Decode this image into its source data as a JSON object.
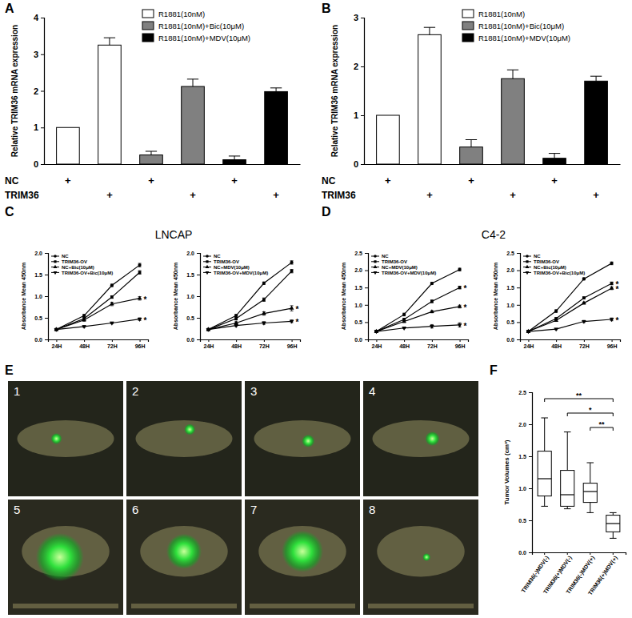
{
  "chart_data": [
    {
      "type": "bar",
      "panel": "A",
      "ylabel": "Relative TRIM36 mRNA expression",
      "categories": [
        null,
        null,
        null,
        null,
        null,
        null
      ],
      "series": [
        {
          "name": "R1881(10nM)",
          "color": "#ffffff",
          "values": [
            1.0,
            3.25,
            null,
            null,
            null,
            null
          ],
          "errors": [
            null,
            0.2,
            null,
            null,
            null,
            null
          ]
        },
        {
          "name": "R1881(10nM)+Bic(10μM)",
          "color": "#808080",
          "values": [
            null,
            null,
            0.25,
            2.12,
            null,
            null
          ],
          "errors": [
            null,
            null,
            0.1,
            0.2,
            null,
            null
          ]
        },
        {
          "name": "R1881(10nM)+MDV(10μM)",
          "color": "#000000",
          "values": [
            null,
            null,
            null,
            null,
            0.12,
            1.98
          ],
          "errors": [
            null,
            null,
            null,
            null,
            0.1,
            0.1
          ]
        }
      ],
      "ylim": [
        0,
        4
      ],
      "yticks": [
        0,
        1,
        2,
        3,
        4
      ],
      "legend": "top",
      "tick_labels": "y",
      "x_rows": [
        {
          "label": "NC",
          "marks": [
            "+",
            null,
            "+",
            null,
            "+",
            null
          ]
        },
        {
          "label": "TRIM36",
          "marks": [
            null,
            "+",
            null,
            "+",
            null,
            "+"
          ]
        }
      ]
    },
    {
      "type": "bar",
      "panel": "B",
      "ylabel": "Relative TRIM36 mRNA expression",
      "categories": [
        null,
        null,
        null,
        null,
        null,
        null
      ],
      "series": [
        {
          "name": "R1881(10nM)",
          "color": "#ffffff",
          "values": [
            1.0,
            2.65,
            null,
            null,
            null,
            null
          ],
          "errors": [
            null,
            0.15,
            null,
            null,
            null,
            null
          ]
        },
        {
          "name": "R1881(10nM)+Bic(10μM)",
          "color": "#808080",
          "values": [
            null,
            null,
            0.35,
            1.75,
            null,
            null
          ],
          "errors": [
            null,
            null,
            0.15,
            0.18,
            null,
            null
          ]
        },
        {
          "name": "R1881(10nM)+MDV(10μM)",
          "color": "#000000",
          "values": [
            null,
            null,
            null,
            null,
            0.12,
            1.7
          ],
          "errors": [
            null,
            null,
            null,
            null,
            0.1,
            0.1
          ]
        }
      ],
      "ylim": [
        0,
        3
      ],
      "yticks": [
        0,
        1,
        2,
        3
      ],
      "legend": "top",
      "tick_labels": "y",
      "x_rows": [
        {
          "label": "NC",
          "marks": [
            "+",
            null,
            "+",
            null,
            "+",
            null
          ]
        },
        {
          "label": "TRIM36",
          "marks": [
            null,
            "+",
            null,
            "+",
            null,
            "+"
          ]
        }
      ]
    },
    {
      "type": "line",
      "panel": "C",
      "title": "LNCAP",
      "ylabel": "Absorbance Mean 450nm",
      "categories": [
        "24H",
        "48H",
        "72H",
        "96H"
      ],
      "ylim": [
        0,
        2
      ],
      "yticks": [
        {
          "value": 0,
          "label": "0.0"
        },
        {
          "value": 0.5,
          "label": "0.5"
        },
        {
          "value": 1,
          "label": "1.0"
        },
        {
          "value": 1.5,
          "label": "1.5"
        },
        {
          "value": 2,
          "label": "2.0"
        }
      ],
      "legend": "top-left",
      "series": [
        {
          "name": "NC",
          "color": "#000000",
          "marker": "circle",
          "values": [
            0.23,
            0.55,
            1.25,
            1.72
          ],
          "errors": [
            0.02,
            0.03,
            0.03,
            0.04
          ]
        },
        {
          "name": "TRIM36-OV",
          "color": "#000000",
          "marker": "square",
          "values": [
            0.23,
            0.48,
            0.98,
            1.55
          ],
          "errors": [
            0.02,
            0.03,
            0.03,
            0.04
          ]
        },
        {
          "name": "NC+Bic(10μM)",
          "color": "#000000",
          "marker": "triangle",
          "values": [
            0.23,
            0.45,
            0.82,
            0.95
          ],
          "errors": [
            0.02,
            0.03,
            0.04,
            0.04
          ],
          "significance": [
            null,
            null,
            null,
            "*"
          ]
        },
        {
          "name": "TRIM36-OV+Bic(10μM)",
          "color": "#000000",
          "marker": "triangle-down",
          "values": [
            0.23,
            0.3,
            0.38,
            0.47
          ],
          "errors": [
            0.02,
            0.02,
            0.02,
            0.03
          ],
          "significance": [
            null,
            null,
            null,
            "*"
          ]
        }
      ]
    },
    {
      "type": "line",
      "ylabel": "Absorbance Mean 450nm",
      "categories": [
        "24H",
        "48H",
        "72H",
        "96H"
      ],
      "ylim": [
        0,
        2
      ],
      "yticks": [
        {
          "value": 0,
          "label": "0.0"
        },
        {
          "value": 0.5,
          "label": "0.5"
        },
        {
          "value": 1,
          "label": "1.0"
        },
        {
          "value": 1.5,
          "label": "1.5"
        },
        {
          "value": 2,
          "label": "2.0"
        }
      ],
      "legend": "top-left",
      "series": [
        {
          "name": "NC",
          "color": "#000000",
          "marker": "circle",
          "values": [
            0.23,
            0.55,
            1.3,
            1.78
          ],
          "errors": [
            0.02,
            0.03,
            0.03,
            0.04
          ]
        },
        {
          "name": "TRIM36-OV",
          "color": "#000000",
          "marker": "square",
          "values": [
            0.23,
            0.48,
            0.92,
            1.58
          ],
          "errors": [
            0.02,
            0.03,
            0.04,
            0.04
          ]
        },
        {
          "name": "NC+MDV(10μM)",
          "color": "#000000",
          "marker": "triangle",
          "values": [
            0.23,
            0.38,
            0.6,
            0.72
          ],
          "errors": [
            0.02,
            0.03,
            0.04,
            0.06
          ],
          "significance": [
            null,
            null,
            null,
            "*"
          ]
        },
        {
          "name": "TRIM36-OV+MDV(10μM)",
          "color": "#000000",
          "marker": "triangle-down",
          "values": [
            0.23,
            0.32,
            0.38,
            0.42
          ],
          "errors": [
            0.02,
            0.02,
            0.03,
            0.03
          ],
          "significance": [
            null,
            null,
            null,
            "*"
          ]
        }
      ]
    },
    {
      "type": "line",
      "panel": "D",
      "title": "C4-2",
      "ylabel": "Absorbance Mean 450nm",
      "categories": [
        "24H",
        "48H",
        "72H",
        "96H"
      ],
      "ylim": [
        0,
        2.5
      ],
      "yticks": [
        {
          "value": 0,
          "label": "0.0"
        },
        {
          "value": 0.5,
          "label": "0.5"
        },
        {
          "value": 1,
          "label": "1.0"
        },
        {
          "value": 1.5,
          "label": "1.5"
        },
        {
          "value": 2,
          "label": "2.0"
        },
        {
          "value": 2.5,
          "label": "2.5"
        }
      ],
      "legend": "top-left",
      "series": [
        {
          "name": "NC",
          "color": "#000000",
          "marker": "circle",
          "values": [
            0.23,
            0.72,
            1.62,
            2.02
          ],
          "errors": [
            0.02,
            0.04,
            0.03,
            0.04
          ]
        },
        {
          "name": "TRIM36-OV",
          "color": "#000000",
          "marker": "square",
          "values": [
            0.23,
            0.58,
            1.1,
            1.5
          ],
          "errors": [
            0.02,
            0.03,
            0.04,
            0.04
          ],
          "significance": [
            null,
            null,
            null,
            "*"
          ]
        },
        {
          "name": "NC+MDV(10μM)",
          "color": "#000000",
          "marker": "triangle",
          "values": [
            0.23,
            0.52,
            0.8,
            0.95
          ],
          "errors": [
            0.02,
            0.03,
            0.03,
            0.04
          ],
          "significance": [
            null,
            null,
            null,
            "*"
          ]
        },
        {
          "name": "TRIM36-OV+MDV(10μM)",
          "color": "#000000",
          "marker": "triangle-down",
          "values": [
            0.23,
            0.33,
            0.38,
            0.42
          ],
          "errors": [
            0.02,
            0.02,
            0.05,
            0.06
          ],
          "significance": [
            null,
            null,
            null,
            "*"
          ]
        }
      ]
    },
    {
      "type": "line",
      "ylabel": "Absorbance Mean 450nm",
      "categories": [
        "24H",
        "48H",
        "72H",
        "96H"
      ],
      "ylim": [
        0,
        2.5
      ],
      "yticks": [
        {
          "value": 0,
          "label": "0.0"
        },
        {
          "value": 0.5,
          "label": "0.5"
        },
        {
          "value": 1,
          "label": "1.0"
        },
        {
          "value": 1.5,
          "label": "1.5"
        },
        {
          "value": 2,
          "label": "2.0"
        },
        {
          "value": 2.5,
          "label": "2.5"
        }
      ],
      "legend": "top-left",
      "series": [
        {
          "name": "NC",
          "color": "#000000",
          "marker": "circle",
          "values": [
            0.23,
            0.82,
            1.75,
            2.2
          ],
          "errors": [
            0.02,
            0.04,
            0.03,
            0.04
          ]
        },
        {
          "name": "TRIM36-OV",
          "color": "#000000",
          "marker": "square",
          "values": [
            0.23,
            0.6,
            1.2,
            1.62
          ],
          "errors": [
            0.02,
            0.03,
            0.03,
            0.04
          ],
          "significance": [
            null,
            null,
            null,
            "*"
          ]
        },
        {
          "name": "NC+Bic(10μM)",
          "color": "#000000",
          "marker": "triangle",
          "values": [
            0.23,
            0.55,
            1.05,
            1.48
          ],
          "errors": [
            0.02,
            0.03,
            0.03,
            0.04
          ],
          "significance": [
            null,
            null,
            null,
            "*"
          ]
        },
        {
          "name": "TRIM36-OV+Bic(10μM)",
          "color": "#000000",
          "marker": "triangle-down",
          "values": [
            0.23,
            0.3,
            0.52,
            0.58
          ],
          "errors": [
            0.02,
            0.02,
            0.03,
            0.04
          ],
          "significance": [
            null,
            null,
            null,
            "*"
          ]
        }
      ]
    },
    {
      "type": "box",
      "panel": "F",
      "ylabel": "Tumor Volumes (cm³)",
      "categories": [
        "TRIM36(-)MDV(-)",
        "TRIM36(+)MDV(-)",
        "TRIM36(-)MDV(+)",
        "TRIM36(+)MDV(+)"
      ],
      "boxes": [
        {
          "min": 0.72,
          "q1": 0.88,
          "median": 1.15,
          "q3": 1.58,
          "max": 2.1
        },
        {
          "min": 0.68,
          "q1": 0.72,
          "median": 0.9,
          "q3": 1.28,
          "max": 1.88
        },
        {
          "min": 0.62,
          "q1": 0.78,
          "median": 0.95,
          "q3": 1.08,
          "max": 1.4
        },
        {
          "min": 0.22,
          "q1": 0.32,
          "median": 0.45,
          "q3": 0.58,
          "max": 0.62
        }
      ],
      "ylim": [
        0,
        2.5
      ],
      "yticks": [
        {
          "value": 0,
          "label": "0.0"
        },
        {
          "value": 0.5,
          "label": "0.5"
        },
        {
          "value": 1,
          "label": "1.0"
        },
        {
          "value": 1.5,
          "label": "1.5"
        },
        {
          "value": 2,
          "label": "2.0"
        },
        {
          "value": 2.5,
          "label": "2.5"
        }
      ],
      "comparisons": [
        {
          "from": 0,
          "to": 3,
          "label": "**"
        },
        {
          "from": 1,
          "to": 3,
          "label": "*"
        },
        {
          "from": 2,
          "to": 3,
          "label": "**"
        }
      ]
    }
  ],
  "image_panel": {
    "panel": "E",
    "labels": [
      "1",
      "2",
      "3",
      "4",
      "5",
      "6",
      "7",
      "8"
    ]
  }
}
